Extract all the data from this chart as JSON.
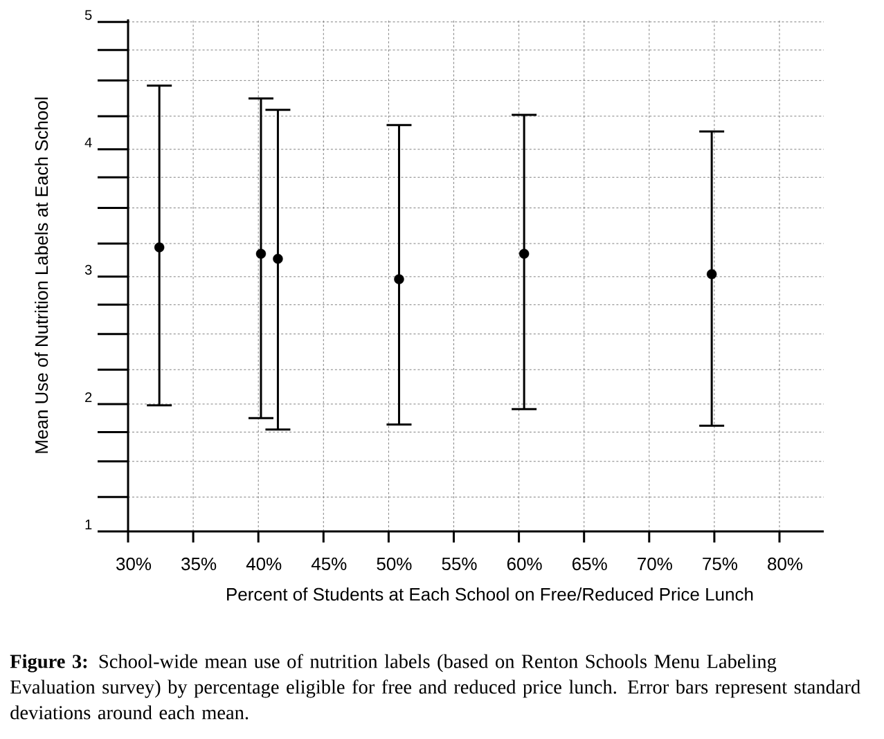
{
  "chart_data": {
    "type": "scatter",
    "xlabel": "Percent of Students at Each School on Free/Reduced Price Lunch",
    "ylabel": "Mean Use of Nutrition Labels at Each School",
    "x": [
      32.4,
      40.2,
      41.5,
      50.8,
      60.4,
      74.8
    ],
    "values": [
      3.23,
      3.18,
      3.14,
      2.98,
      3.18,
      3.02
    ],
    "errors": [
      [
        1.99,
        4.5
      ],
      [
        1.89,
        4.4
      ],
      [
        1.8,
        4.31
      ],
      [
        1.84,
        4.19
      ],
      [
        1.96,
        4.27
      ],
      [
        1.83,
        4.14
      ]
    ],
    "color": "#000000",
    "marker": "circle",
    "grid": true,
    "xlim": [
      30,
      83.4
    ],
    "ylim": [
      1,
      5.02
    ],
    "xticks": [
      {
        "value": 30,
        "label": "30%"
      },
      {
        "value": 35,
        "label": "35%"
      },
      {
        "value": 40,
        "label": "40%"
      },
      {
        "value": 45,
        "label": "45%"
      },
      {
        "value": 50,
        "label": "50%"
      },
      {
        "value": 55,
        "label": "55%"
      },
      {
        "value": 60,
        "label": "60%"
      },
      {
        "value": 65,
        "label": "65%"
      },
      {
        "value": 70,
        "label": "70%"
      },
      {
        "value": 75,
        "label": "75%"
      },
      {
        "value": 80,
        "label": "80%"
      }
    ],
    "yticks": [
      1,
      {
        "value": 1.27,
        "label": null
      },
      {
        "value": 1.55,
        "label": null
      },
      {
        "value": 1.78,
        "label": null
      },
      2,
      {
        "value": 2.27,
        "label": null
      },
      {
        "value": 2.55,
        "label": null
      },
      {
        "value": 2.78,
        "label": null
      },
      3,
      {
        "value": 3.26,
        "label": null
      },
      {
        "value": 3.54,
        "label": null
      },
      {
        "value": 3.78,
        "label": null
      },
      4,
      {
        "value": 4.26,
        "label": null
      },
      {
        "value": 4.54,
        "label": null
      },
      {
        "value": 4.78,
        "label": null
      },
      5
    ],
    "annotations": [
      "**Figure 3:** School-wide mean use of nutrition labels (based on Renton Schools Menu Labeling Evaluation survey) by percentage eligible for free and reduced price lunch. Error bars represent standard deviations around each mean."
    ]
  }
}
